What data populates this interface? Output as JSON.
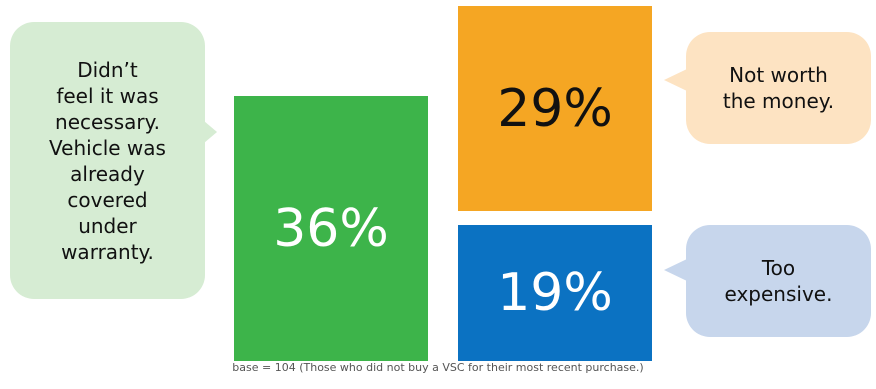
{
  "colors": {
    "green_box": "#3db44a",
    "orange_box": "#f5a623",
    "blue_box": "#0b72c2",
    "green_bubble": "#d6ecd3",
    "orange_bubble": "#fde3c2",
    "blue_bubble": "#c7d6ec"
  },
  "chart_data": {
    "type": "bar",
    "categories": [
      "Didn’t\nfeel it was\nnecessary.\nVehicle was\nalready\ncovered\nunder\nwarranty.",
      "Not worth\nthe money.",
      "Too\nexpensive."
    ],
    "values": [
      36,
      29,
      19
    ],
    "value_labels": [
      "36%",
      "29%",
      "19%"
    ],
    "footnote": "base = 104 (Those who did not buy a VSC for their most recent purchase.)"
  }
}
